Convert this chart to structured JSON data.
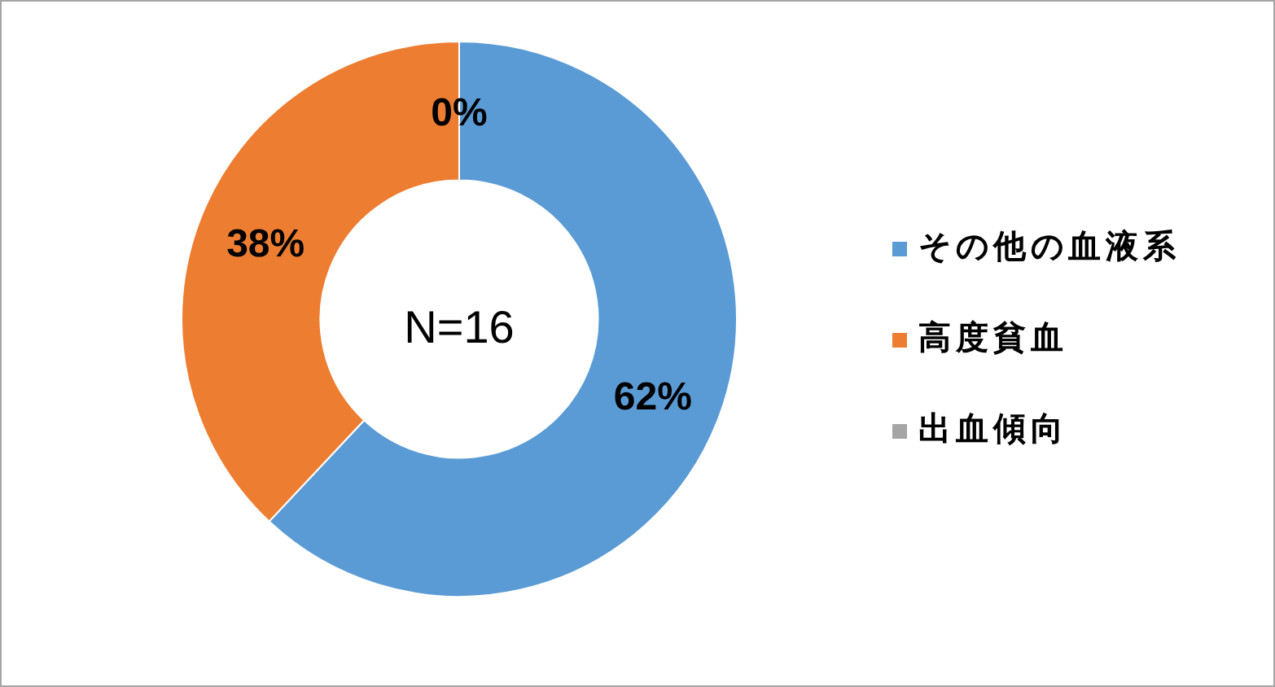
{
  "chart_data": {
    "type": "donut",
    "categories": [
      "その他の血液系",
      "高度貧血",
      "出血傾向"
    ],
    "values": [
      62,
      38,
      0
    ],
    "colors": [
      "#5b9bd5",
      "#ed7d31",
      "#a5a5a5"
    ],
    "value_labels": [
      "62%",
      "38%",
      "0%"
    ],
    "annotations": [
      "N=16"
    ],
    "legend": "right"
  }
}
